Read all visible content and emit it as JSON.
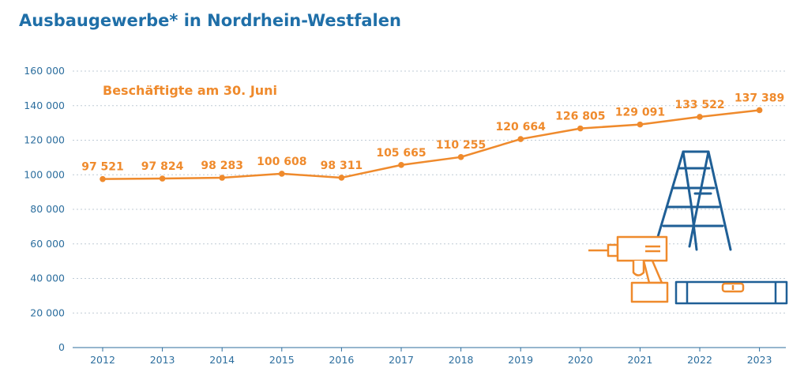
{
  "title": "Ausbaugewerbe* in Nordrhein-Westfalen",
  "colors": {
    "title": "#1f6fa8",
    "axis_text": "#2c6e9e",
    "line": "#ef8a2c",
    "grid": "#bfcbd6",
    "illustration_blue": "#1f5f96",
    "illustration_orange": "#ef8a2c"
  },
  "icons": [
    "ladder-icon",
    "drill-icon",
    "spirit-level-icon"
  ],
  "chart_data": {
    "type": "line",
    "title": "Ausbaugewerbe* in Nordrhein-Westfalen",
    "xlabel": "",
    "ylabel": "",
    "categories": [
      "2012",
      "2013",
      "2014",
      "2015",
      "2016",
      "2017",
      "2018",
      "2019",
      "2020",
      "2021",
      "2022",
      "2023"
    ],
    "series": [
      {
        "name": "Beschäftigte am 30. Juni",
        "values": [
          97521,
          97824,
          98283,
          100608,
          98311,
          105665,
          110255,
          120664,
          126805,
          129091,
          133522,
          137389
        ],
        "labels": [
          "97 521",
          "97 824",
          "98 283",
          "100 608",
          "98 311",
          "105 665",
          "110 255",
          "120 664",
          "126 805",
          "129 091",
          "133 522",
          "137 389"
        ]
      }
    ],
    "ylim": [
      0,
      160000
    ],
    "yticks": [
      0,
      20000,
      40000,
      60000,
      80000,
      100000,
      120000,
      140000,
      160000
    ],
    "ytick_labels": [
      "0",
      "20 000",
      "40 000",
      "60 000",
      "80 000",
      "100 000",
      "120 000",
      "140 000",
      "160 000"
    ],
    "grid": true,
    "legend": "top-left, inline text"
  }
}
